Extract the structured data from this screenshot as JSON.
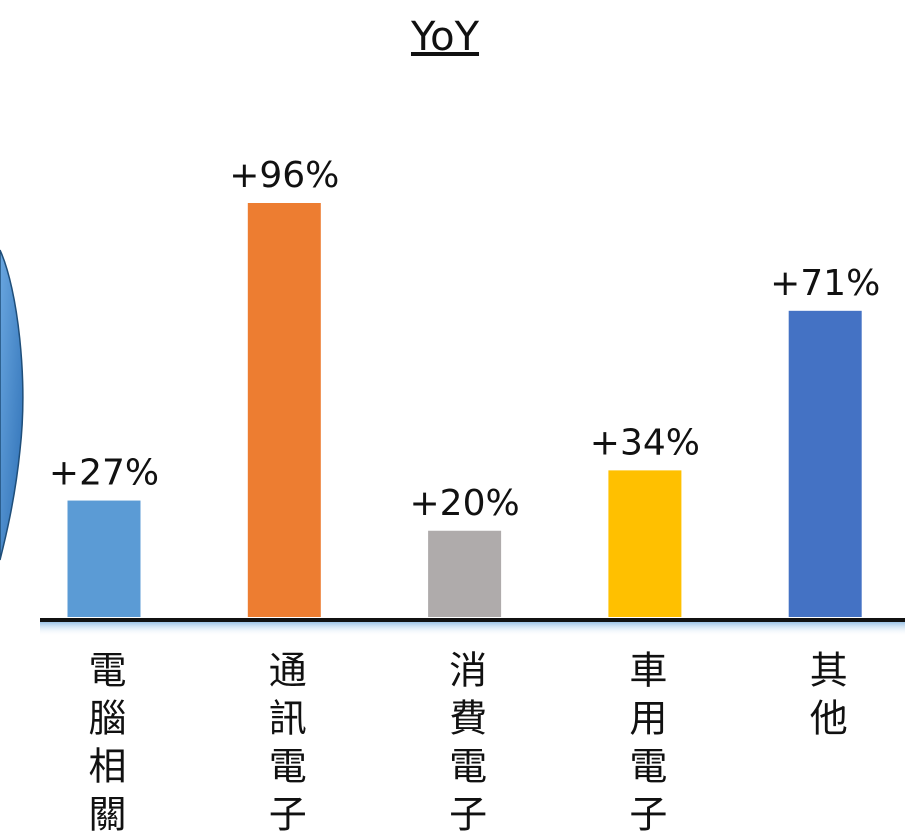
{
  "chart_data": {
    "type": "bar",
    "title": "YoY",
    "categories": [
      "電腦相關",
      "通訊電子",
      "消費電子",
      "車用電子",
      "其他"
    ],
    "values": [
      27,
      96,
      20,
      34,
      71
    ],
    "value_labels": [
      "+27%",
      "+96%",
      "+20%",
      "+34%",
      "+71%"
    ],
    "colors": [
      "#5b9bd5",
      "#ed7d31",
      "#afabab",
      "#ffc000",
      "#4472c4"
    ]
  }
}
